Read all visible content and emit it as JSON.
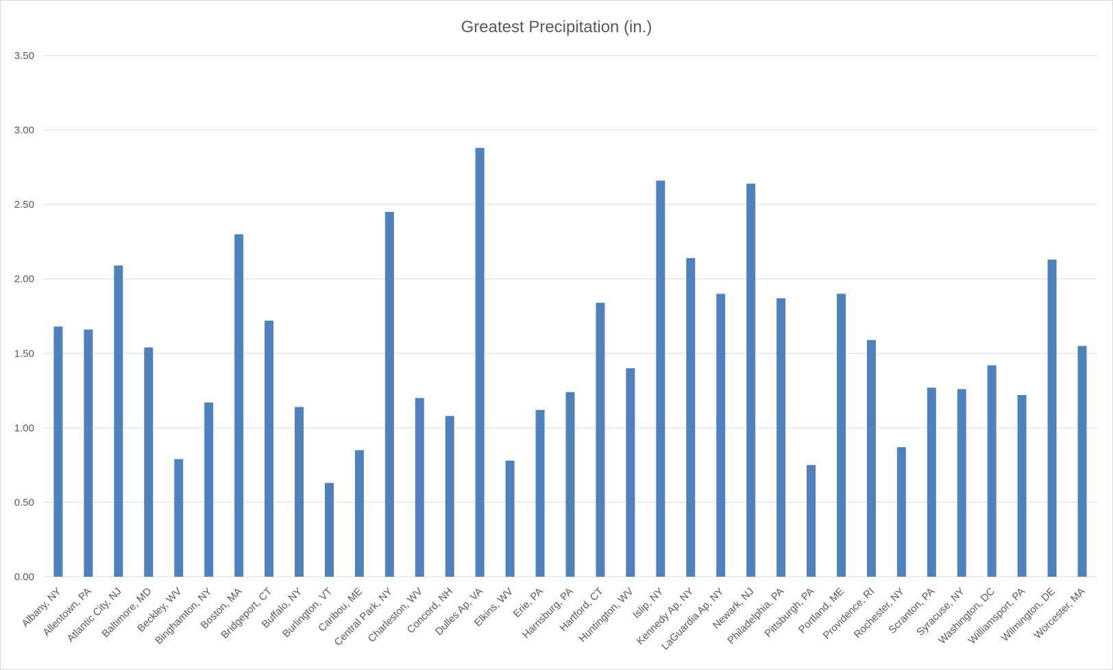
{
  "chart_data": {
    "type": "bar",
    "title": "Greatest Precipitation (in.)",
    "xlabel": "",
    "ylabel": "",
    "ylim": [
      0,
      3.5
    ],
    "yticks": [
      "0.00",
      "0.50",
      "1.00",
      "1.50",
      "2.00",
      "2.50",
      "3.00",
      "3.50"
    ],
    "grid": true,
    "legend": "none",
    "color": "#4f81bd",
    "categories": [
      "Albany, NY",
      "Allentown, PA",
      "Atlantic City, NJ",
      "Baltimore, MD",
      "Beckley, WV",
      "Binghamton, NY",
      "Boston, MA",
      "Bridgeport, CT",
      "Buffalo, NY",
      "Burlington, VT",
      "Caribou, ME",
      "Central Park, NY",
      "Charleston, WV",
      "Concord, NH",
      "Dulles Ap, VA",
      "Elkins, WV",
      "Erie, PA",
      "Harrisburg, PA",
      "Hartford, CT",
      "Huntington, WV",
      "Islip, NY",
      "Kennedy Ap, NY",
      "LaGuardia Ap, NY",
      "Newark, NJ",
      "Philadelphia, PA",
      "Pittsburgh, PA",
      "Portland, ME",
      "Providence, RI",
      "Rochester, NY",
      "Scranton, PA",
      "Syracuse, NY",
      "Washington, DC",
      "Williamsport, PA",
      "Wilmington, DE",
      "Worcester, MA"
    ],
    "values": [
      1.68,
      1.66,
      2.09,
      1.54,
      0.79,
      1.17,
      2.3,
      1.72,
      1.14,
      0.63,
      0.85,
      2.45,
      1.2,
      1.08,
      2.88,
      0.78,
      1.12,
      1.24,
      1.84,
      1.4,
      2.66,
      2.14,
      1.9,
      2.64,
      1.87,
      0.75,
      1.9,
      1.59,
      0.87,
      1.27,
      1.26,
      1.42,
      1.22,
      2.13,
      1.55
    ]
  }
}
